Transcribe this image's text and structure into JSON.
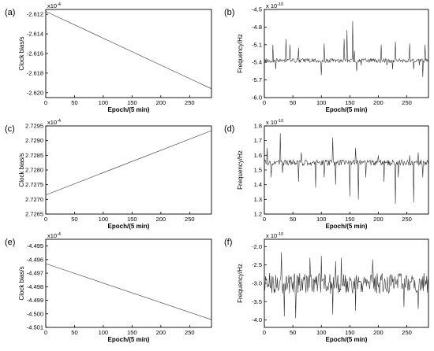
{
  "chart_data": [
    {
      "panel": "(a)",
      "type": "line",
      "title": "",
      "xlabel": "Epoch/(5 min)",
      "ylabel": "Clock bias/s",
      "y_multiplier": "x10",
      "y_exponent": "-4",
      "xlim": [
        0,
        288
      ],
      "ylim": [
        -2.6205,
        -2.6115
      ],
      "xticks": [
        0,
        50,
        100,
        150,
        200,
        250
      ],
      "yticks": [
        -2.612,
        -2.614,
        -2.616,
        -2.618,
        -2.62
      ],
      "ytick_labels": [
        "-2.612",
        "-2.614",
        "-2.616",
        "-2.618",
        "-2.620"
      ],
      "series": [
        {
          "x": [
            0,
            288
          ],
          "y": [
            -2.6117,
            -2.6196
          ]
        }
      ]
    },
    {
      "panel": "(b)",
      "type": "line",
      "title": "",
      "xlabel": "Epoch/(5 min)",
      "ylabel": "Frequency/Hz",
      "y_multiplier": "x 10",
      "y_exponent": "-10",
      "xlim": [
        0,
        288
      ],
      "ylim": [
        -6.0,
        -4.5
      ],
      "xticks": [
        0,
        50,
        100,
        150,
        200,
        250
      ],
      "yticks": [
        -4.5,
        -4.8,
        -5.1,
        -5.4,
        -5.7,
        -6.0
      ],
      "ytick_labels": [
        "-4.5",
        "-4.8",
        "-5.1",
        "-5.4",
        "-5.7",
        "-6.0"
      ],
      "series": [
        {
          "baseline": -5.37,
          "noise": 0.035,
          "spikes": [
            {
              "x": 15,
              "y": -5.1
            },
            {
              "x": 20,
              "y": -5.52
            },
            {
              "x": 38,
              "y": -5.0
            },
            {
              "x": 45,
              "y": -5.1
            },
            {
              "x": 60,
              "y": -5.15
            },
            {
              "x": 100,
              "y": -5.62
            },
            {
              "x": 105,
              "y": -5.08
            },
            {
              "x": 140,
              "y": -5.0
            },
            {
              "x": 145,
              "y": -4.85
            },
            {
              "x": 155,
              "y": -4.7
            },
            {
              "x": 158,
              "y": -5.2
            },
            {
              "x": 162,
              "y": -5.55
            },
            {
              "x": 170,
              "y": -5.45
            },
            {
              "x": 205,
              "y": -5.1
            },
            {
              "x": 215,
              "y": -5.45
            },
            {
              "x": 225,
              "y": -5.52
            },
            {
              "x": 230,
              "y": -5.05
            },
            {
              "x": 255,
              "y": -5.08
            },
            {
              "x": 262,
              "y": -5.52
            },
            {
              "x": 272,
              "y": -5.45
            },
            {
              "x": 278,
              "y": -5.65
            },
            {
              "x": 282,
              "y": -5.1
            }
          ]
        }
      ]
    },
    {
      "panel": "(c)",
      "type": "line",
      "title": "",
      "xlabel": "Epoch/(5 min)",
      "ylabel": "Clock bias/s",
      "y_multiplier": "x10",
      "y_exponent": "-4",
      "xlim": [
        0,
        288
      ],
      "ylim": [
        2.7265,
        2.7295
      ],
      "xticks": [
        0,
        50,
        100,
        150,
        200,
        250
      ],
      "yticks": [
        2.7265,
        2.727,
        2.7275,
        2.728,
        2.7285,
        2.729,
        2.7295
      ],
      "ytick_labels": [
        "2.7265",
        "2.7270",
        "2.7275",
        "2.7280",
        "2.7285",
        "2.7290",
        "2.7295"
      ],
      "series": [
        {
          "x": [
            0,
            288
          ],
          "y": [
            2.72715,
            2.72934
          ]
        }
      ]
    },
    {
      "panel": "(d)",
      "type": "line",
      "title": "",
      "xlabel": "Epoch/(5 min)",
      "ylabel": "Frequency/Hz",
      "y_multiplier": "x 10",
      "y_exponent": "-10",
      "xlim": [
        0,
        288
      ],
      "ylim": [
        1.2,
        1.8
      ],
      "xticks": [
        0,
        50,
        100,
        150,
        200,
        250
      ],
      "yticks": [
        1.2,
        1.3,
        1.4,
        1.5,
        1.6,
        1.7,
        1.8
      ],
      "ytick_labels": [
        "1.2",
        "1.3",
        "1.4",
        "1.5",
        "1.6",
        "1.7",
        "1.8"
      ],
      "series": [
        {
          "baseline": 1.55,
          "noise": 0.02,
          "spikes": [
            {
              "x": 5,
              "y": 1.65
            },
            {
              "x": 12,
              "y": 1.45
            },
            {
              "x": 28,
              "y": 1.75
            },
            {
              "x": 32,
              "y": 1.48
            },
            {
              "x": 60,
              "y": 1.42
            },
            {
              "x": 65,
              "y": 1.62
            },
            {
              "x": 90,
              "y": 1.38
            },
            {
              "x": 105,
              "y": 1.45
            },
            {
              "x": 120,
              "y": 1.72
            },
            {
              "x": 125,
              "y": 1.4
            },
            {
              "x": 150,
              "y": 1.32
            },
            {
              "x": 160,
              "y": 1.65
            },
            {
              "x": 165,
              "y": 1.3
            },
            {
              "x": 178,
              "y": 1.45
            },
            {
              "x": 200,
              "y": 1.6
            },
            {
              "x": 210,
              "y": 1.42
            },
            {
              "x": 230,
              "y": 1.27
            },
            {
              "x": 235,
              "y": 1.45
            },
            {
              "x": 255,
              "y": 1.6
            },
            {
              "x": 262,
              "y": 1.28
            },
            {
              "x": 270,
              "y": 1.62
            },
            {
              "x": 278,
              "y": 1.45
            }
          ]
        }
      ]
    },
    {
      "panel": "(e)",
      "type": "line",
      "title": "",
      "xlabel": "Epoch/(5 min)",
      "ylabel": "Clock bias/s",
      "y_multiplier": "x10",
      "y_exponent": "-4",
      "xlim": [
        0,
        288
      ],
      "ylim": [
        -4.501,
        -4.4945
      ],
      "xticks": [
        0,
        50,
        100,
        150,
        200,
        250
      ],
      "yticks": [
        -4.495,
        -4.496,
        -4.497,
        -4.498,
        -4.499,
        -4.5,
        -4.501
      ],
      "ytick_labels": [
        "-4.495",
        "-4.496",
        "-4.497",
        "-4.498",
        "-4.499",
        "-4.500",
        "-4.501"
      ],
      "series": [
        {
          "x": [
            0,
            288
          ],
          "y": [
            -4.4963,
            -4.50043
          ]
        }
      ]
    },
    {
      "panel": "(f)",
      "type": "line",
      "title": "",
      "xlabel": "Epoch/(5 min)",
      "ylabel": "Frequency/Hz",
      "y_multiplier": "x 10",
      "y_exponent": "-10",
      "xlim": [
        0,
        288
      ],
      "ylim": [
        -4.2,
        -1.8
      ],
      "xticks": [
        0,
        50,
        100,
        150,
        200,
        250
      ],
      "yticks": [
        -2.0,
        -2.5,
        -3.0,
        -3.5,
        -4.0
      ],
      "ytick_labels": [
        "-2.0",
        "-2.5",
        "-3.0",
        "-3.5",
        "-4.0"
      ],
      "series": [
        {
          "baseline": -3.0,
          "noise": 0.28,
          "spikes": [
            {
              "x": 30,
              "y": -2.15
            },
            {
              "x": 35,
              "y": -3.9
            },
            {
              "x": 55,
              "y": -3.95
            },
            {
              "x": 80,
              "y": -2.3
            },
            {
              "x": 100,
              "y": -2.25
            },
            {
              "x": 120,
              "y": -3.85
            },
            {
              "x": 125,
              "y": -2.4
            },
            {
              "x": 135,
              "y": -2.3
            },
            {
              "x": 160,
              "y": -3.75
            },
            {
              "x": 190,
              "y": -2.35
            },
            {
              "x": 245,
              "y": -3.65
            },
            {
              "x": 270,
              "y": -3.7
            }
          ]
        }
      ]
    }
  ]
}
